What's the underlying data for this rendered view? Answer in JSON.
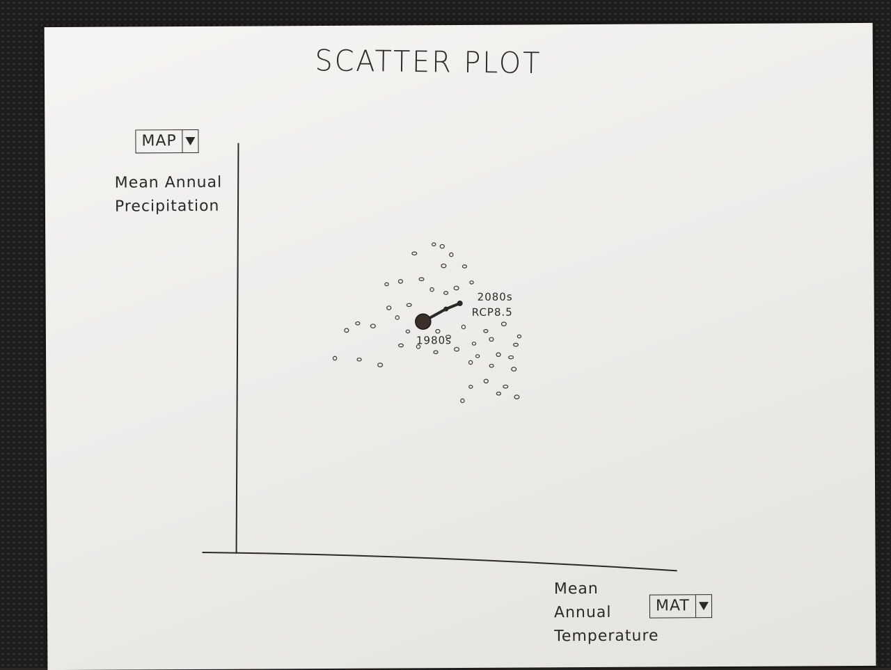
{
  "title": "SCATTER PLOT",
  "y_axis": {
    "dropdown_value": "MAP",
    "label": "Mean Annual\nPrecipitation"
  },
  "x_axis": {
    "dropdown_value": "MAT",
    "label": "Mean\nAnnual\nTemperature"
  },
  "trajectory": {
    "start_label": "1980s",
    "end_label_line1": "2080s",
    "end_label_line2": "RCP8.5"
  },
  "icons": {
    "dropdown_arrow": "triangle-down-icon"
  },
  "colors": {
    "ink": "#2b2826",
    "paper": "#efeeeb"
  }
}
